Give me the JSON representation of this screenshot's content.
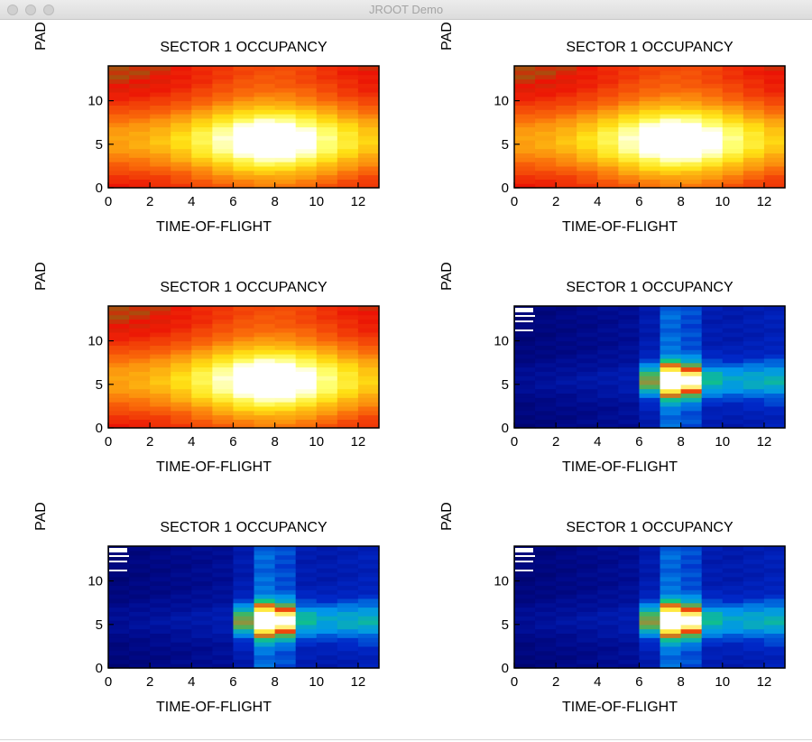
{
  "window": {
    "title": "JROOT Demo"
  },
  "chart_data": [
    {
      "type": "heatmap",
      "title": "SECTOR 1 OCCUPANCY",
      "xlabel": "TIME-OF-FLIGHT",
      "ylabel": "PAD",
      "xlim": [
        0,
        13
      ],
      "ylim": [
        0,
        14
      ],
      "xticks": [
        "0",
        "2",
        "4",
        "6",
        "8",
        "10",
        "12"
      ],
      "yticks": [
        "0",
        "5",
        "10"
      ],
      "colormap": "green-red-yellow-white",
      "peak": {
        "x": 7.8,
        "y": 5.5
      }
    },
    {
      "type": "heatmap",
      "title": "SECTOR 1 OCCUPANCY",
      "xlabel": "TIME-OF-FLIGHT",
      "ylabel": "PAD",
      "xlim": [
        0,
        13
      ],
      "ylim": [
        0,
        14
      ],
      "xticks": [
        "0",
        "2",
        "4",
        "6",
        "8",
        "10",
        "12"
      ],
      "yticks": [
        "0",
        "5",
        "10"
      ],
      "colormap": "green-red-yellow-white",
      "peak": {
        "x": 7.8,
        "y": 5.5
      }
    },
    {
      "type": "heatmap",
      "title": "SECTOR 1 OCCUPANCY",
      "xlabel": "TIME-OF-FLIGHT",
      "ylabel": "PAD",
      "xlim": [
        0,
        13
      ],
      "ylim": [
        0,
        14
      ],
      "xticks": [
        "0",
        "2",
        "4",
        "6",
        "8",
        "10",
        "12"
      ],
      "yticks": [
        "0",
        "5",
        "10"
      ],
      "colormap": "green-red-yellow-white",
      "peak": {
        "x": 7.8,
        "y": 5.5
      }
    },
    {
      "type": "heatmap",
      "title": "SECTOR 1 OCCUPANCY",
      "xlabel": "TIME-OF-FLIGHT",
      "ylabel": "PAD",
      "xlim": [
        0,
        13
      ],
      "ylim": [
        0,
        14
      ],
      "xticks": [
        "0",
        "2",
        "4",
        "6",
        "8",
        "10",
        "12"
      ],
      "yticks": [
        "0",
        "5",
        "10"
      ],
      "colormap": "rainbow",
      "peak": {
        "x": 7.8,
        "y": 5.5
      }
    },
    {
      "type": "heatmap",
      "title": "SECTOR 1 OCCUPANCY",
      "xlabel": "TIME-OF-FLIGHT",
      "ylabel": "PAD",
      "xlim": [
        0,
        13
      ],
      "ylim": [
        0,
        14
      ],
      "xticks": [
        "0",
        "2",
        "4",
        "6",
        "8",
        "10",
        "12"
      ],
      "yticks": [
        "0",
        "5",
        "10"
      ],
      "colormap": "rainbow",
      "peak": {
        "x": 7.8,
        "y": 5.5
      }
    },
    {
      "type": "heatmap",
      "title": "SECTOR 1 OCCUPANCY",
      "xlabel": "TIME-OF-FLIGHT",
      "ylabel": "PAD",
      "xlim": [
        0,
        13
      ],
      "ylim": [
        0,
        14
      ],
      "xticks": [
        "0",
        "2",
        "4",
        "6",
        "8",
        "10",
        "12"
      ],
      "yticks": [
        "0",
        "5",
        "10"
      ],
      "colormap": "rainbow",
      "peak": {
        "x": 7.8,
        "y": 5.5
      }
    }
  ]
}
